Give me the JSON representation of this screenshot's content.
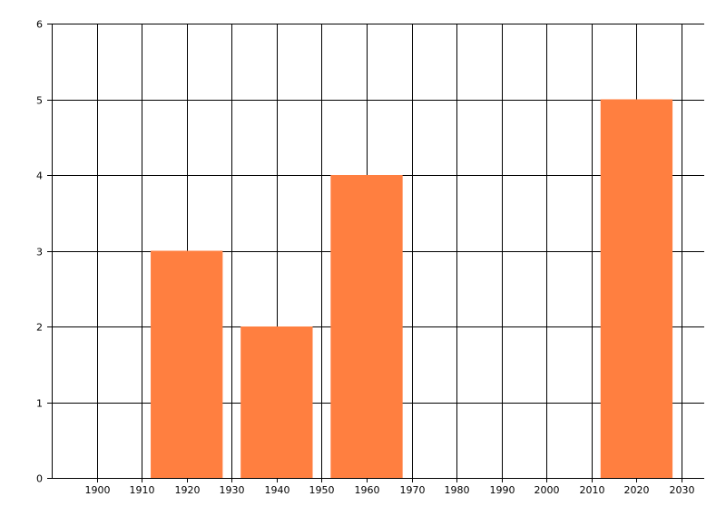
{
  "chart_data": {
    "type": "bar",
    "x": [
      1920,
      1940,
      1960,
      2020
    ],
    "values": [
      3,
      2,
      4,
      5
    ],
    "bar_width_years": 16,
    "xlim": [
      1890,
      2035
    ],
    "ylim": [
      0,
      6
    ],
    "x_ticks": [
      1900,
      1910,
      1920,
      1930,
      1940,
      1950,
      1960,
      1970,
      1980,
      1990,
      2000,
      2010,
      2020,
      2030
    ],
    "y_ticks": [
      0,
      1,
      2,
      3,
      4,
      5,
      6
    ],
    "grid": true,
    "bar_color": "#FF7F40",
    "title": "",
    "xlabel": "",
    "ylabel": ""
  }
}
